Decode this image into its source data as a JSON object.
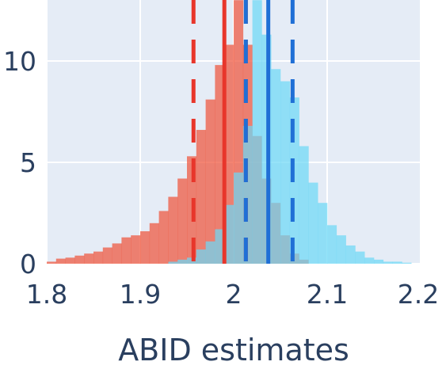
{
  "chart_data": {
    "type": "bar",
    "xlabel": "ABID estimates",
    "ylabel": "",
    "xlim": [
      1.8,
      2.2
    ],
    "ylim": [
      0,
      13
    ],
    "grid": true,
    "legend": "none",
    "colors": {
      "plot_bg": "#e5ecf6",
      "grid": "#ffffff",
      "series_red": "#ef553b",
      "series_cyan": "#6ed8f5",
      "overlap": "#8eaeb6",
      "red_line": "#e8362b",
      "blue_line": "#1f6fd6"
    },
    "x_ticks": [
      {
        "value": 1.8,
        "label": "1.8"
      },
      {
        "value": 1.9,
        "label": "1.9"
      },
      {
        "value": 2.0,
        "label": "2"
      },
      {
        "value": 2.1,
        "label": "2.1"
      },
      {
        "value": 2.2,
        "label": "2.2"
      }
    ],
    "y_ticks": [
      {
        "value": 0,
        "label": "0"
      },
      {
        "value": 5,
        "label": "5"
      },
      {
        "value": 10,
        "label": "10"
      }
    ],
    "bin_width": 0.01,
    "series": [
      {
        "color_key": "series_red",
        "bin_starts": [
          1.8,
          1.81,
          1.82,
          1.83,
          1.84,
          1.85,
          1.86,
          1.87,
          1.88,
          1.89,
          1.9,
          1.91,
          1.92,
          1.93,
          1.94,
          1.95,
          1.96,
          1.97,
          1.98,
          1.99,
          2.0,
          2.01,
          2.02,
          2.03,
          2.04,
          2.05,
          2.06,
          2.07
        ],
        "values": [
          0.1,
          0.25,
          0.3,
          0.4,
          0.5,
          0.6,
          0.8,
          1.0,
          1.3,
          1.4,
          1.6,
          2.0,
          2.6,
          3.3,
          4.2,
          5.3,
          6.6,
          8.1,
          9.8,
          10.8,
          13.0,
          10.8,
          6.3,
          4.2,
          3.0,
          1.4,
          0.5,
          0.2
        ]
      },
      {
        "color_key": "series_cyan",
        "bin_starts": [
          1.93,
          1.94,
          1.95,
          1.96,
          1.97,
          1.98,
          1.99,
          2.0,
          2.01,
          2.02,
          2.03,
          2.04,
          2.05,
          2.06,
          2.07,
          2.08,
          2.09,
          2.1,
          2.11,
          2.12,
          2.13,
          2.14,
          2.15,
          2.16,
          2.17,
          2.18
        ],
        "values": [
          0.1,
          0.2,
          0.3,
          0.7,
          1.1,
          1.7,
          2.9,
          4.5,
          6.8,
          13.0,
          11.3,
          9.6,
          9.0,
          8.2,
          5.8,
          4.0,
          3.0,
          1.9,
          1.4,
          0.9,
          0.6,
          0.3,
          0.2,
          0.1,
          0.1,
          0.05
        ]
      }
    ],
    "vertical_lines": [
      {
        "x": 1.99,
        "color_key": "red_line",
        "dash": false
      },
      {
        "x": 1.957,
        "color_key": "red_line",
        "dash": true
      },
      {
        "x": 2.013,
        "color_key": "red_line",
        "dash": true
      },
      {
        "x": 2.037,
        "color_key": "blue_line",
        "dash": false
      },
      {
        "x": 2.013,
        "color_key": "blue_line",
        "dash": true
      },
      {
        "x": 2.063,
        "color_key": "blue_line",
        "dash": true
      }
    ]
  }
}
